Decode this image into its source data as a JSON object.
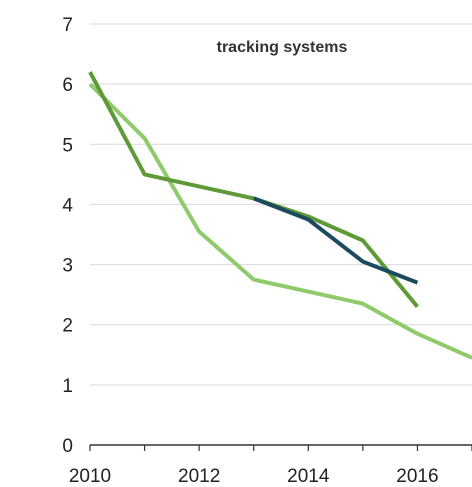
{
  "chart_data": {
    "type": "line",
    "title": "tracking systems",
    "xlabel": "",
    "ylabel": "",
    "xlim": [
      2010,
      2017
    ],
    "ylim": [
      0,
      7
    ],
    "x_ticks": [
      2010,
      2012,
      2014,
      2016
    ],
    "y_ticks": [
      0,
      1,
      2,
      3,
      4,
      5,
      6,
      7
    ],
    "grid": true,
    "series": [
      {
        "color": "#8fcb6a",
        "x": [
          2010,
          2011,
          2012,
          2013,
          2014,
          2015,
          2016,
          2017
        ],
        "y": [
          6.0,
          5.1,
          3.55,
          2.75,
          2.55,
          2.35,
          1.85,
          1.45
        ]
      },
      {
        "color": "#5f9a39",
        "x": [
          2010,
          2011,
          2012,
          2013,
          2014,
          2015,
          2016
        ],
        "y": [
          6.2,
          4.5,
          4.3,
          4.1,
          3.8,
          3.4,
          2.3
        ]
      },
      {
        "color": "#1c4a5e",
        "x": [
          2013,
          2014,
          2015,
          2016
        ],
        "y": [
          4.1,
          3.75,
          3.05,
          2.7
        ]
      }
    ]
  }
}
